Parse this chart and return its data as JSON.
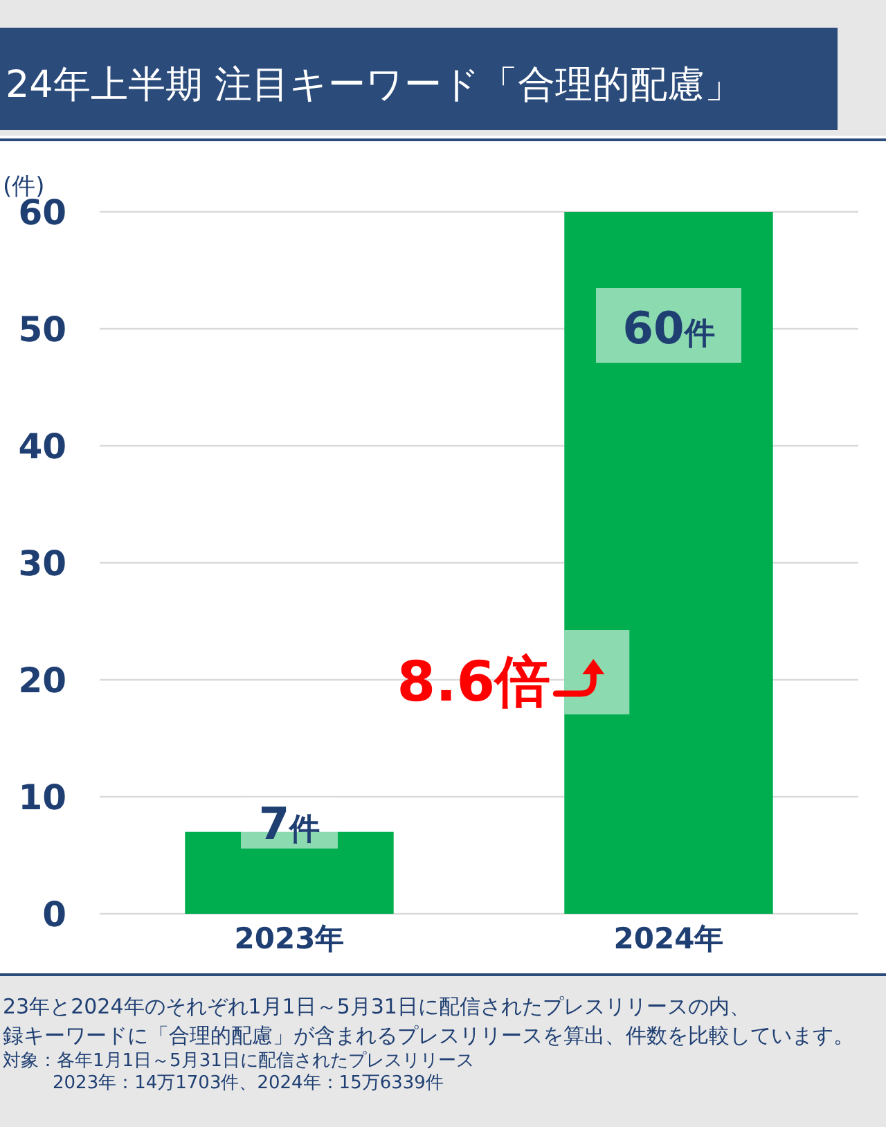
{
  "chart_data": {
    "type": "bar",
    "title": "24年上半期 注目キーワード「合理的配慮」",
    "ylabel": "(件)",
    "categories": [
      "2023年",
      "2024年"
    ],
    "values": [
      7,
      60
    ],
    "value_labels": [
      "7件",
      "60件"
    ],
    "color": "#00ad4f",
    "ylim": [
      0,
      60
    ],
    "yticks": [
      0,
      10,
      20,
      30,
      40,
      50,
      60
    ],
    "grid": "y",
    "legend": false,
    "annotations": [
      "8.6倍",
      "23年と2024年のそれぞれ1月1日～5月31日に配信されたプレスリリースの内、",
      "録キーワードに「合理的配慮」が含まれるプレスリリースを算出、件数を比較しています。",
      "対象：各年1月1日～5月31日に配信されたプレスリリース",
      "2023年：14万1703件、2024年：15万6339件"
    ]
  }
}
